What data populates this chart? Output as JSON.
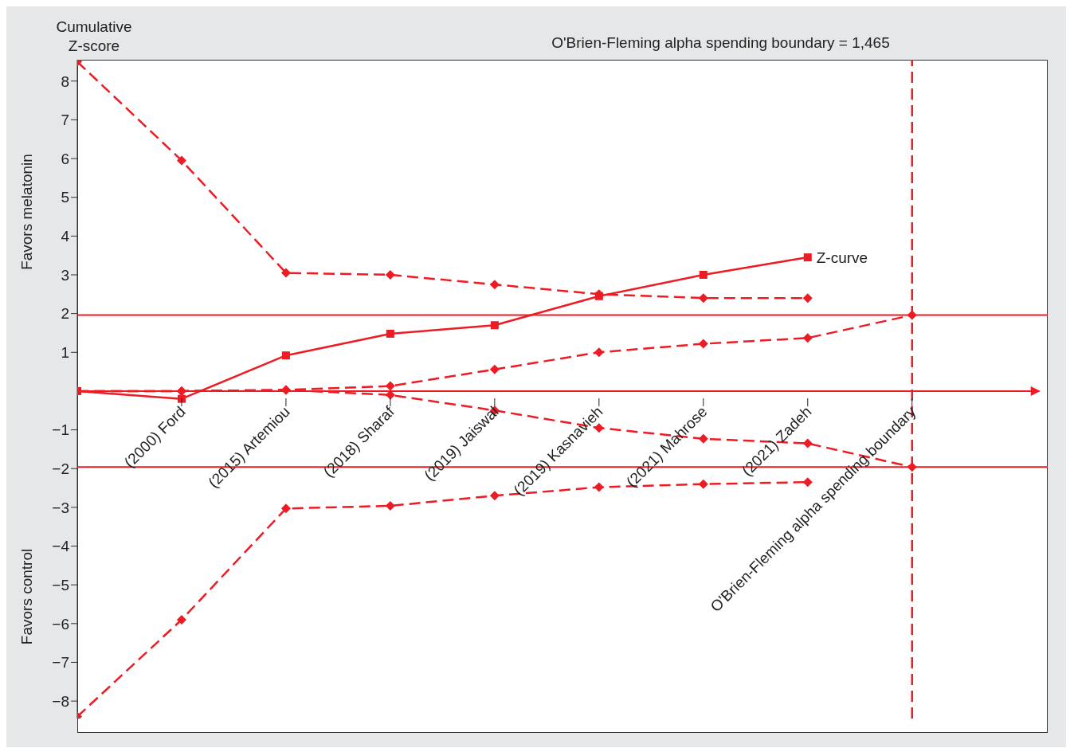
{
  "chart_data": {
    "type": "line",
    "ylabel": "Cumulative Z-score",
    "categories": [
      null,
      "(2000) Ford",
      "(2015) Artemiou",
      "(2018) Sharaf",
      "(2019) Jaiswal",
      "(2019) Kasnavieh",
      "(2021) Mahrose",
      "(2021) Zadeh",
      "O'Brien-Fleming alpha spending boundary"
    ],
    "series": [
      {
        "name": "Z-curve",
        "color": "#ed1c24",
        "marker": "square",
        "line_style": "solid",
        "values": [
          0,
          -0.2,
          0.92,
          1.48,
          1.7,
          2.45,
          3.0,
          3.45,
          null
        ]
      },
      {
        "color": "#ed1c24",
        "marker": "diamond",
        "line_style": "dashed",
        "values": [
          8.5,
          5.95,
          3.05,
          3.0,
          2.75,
          2.5,
          2.4,
          2.4,
          null
        ]
      },
      {
        "color": "#ed1c24",
        "marker": "diamond",
        "line_style": "dashed",
        "values": [
          -8.4,
          -5.9,
          -3.03,
          -2.96,
          -2.7,
          -2.48,
          -2.4,
          -2.35,
          null
        ]
      },
      {
        "color": "#ed1c24",
        "marker": "diamond",
        "line_style": "dashed",
        "values": [
          0,
          0,
          0.03,
          0.13,
          0.56,
          1.0,
          1.22,
          1.37,
          1.96
        ]
      },
      {
        "color": "#ed1c24",
        "marker": "diamond",
        "line_style": "dashed",
        "values": [
          0,
          0,
          0.03,
          -0.1,
          -0.5,
          -0.95,
          -1.23,
          -1.35,
          -1.96
        ]
      }
    ],
    "ylim": [
      -8.45,
      8.55
    ],
    "yticks": [
      -8,
      -7,
      -6,
      -5,
      -4,
      -3,
      -2,
      -1,
      1,
      2,
      3,
      4,
      5,
      6,
      7,
      8
    ],
    "ref_lines": [
      {
        "axis": "y",
        "value": 1.96,
        "color": "#ed1c24",
        "line_style": "solid"
      },
      {
        "axis": "y",
        "value": -1.96,
        "color": "#ed1c24",
        "line_style": "solid"
      },
      {
        "axis": "y",
        "value": 0,
        "color": "#ed1c24",
        "line_style": "solid"
      },
      {
        "axis": "x",
        "value": "O'Brien-Fleming alpha spending boundary",
        "label": "O'Brien-Fleming alpha spending boundary = 1,465",
        "color": "#ed1c24",
        "line_style": "dashed"
      }
    ],
    "annotations": [
      "Favors melatonin",
      "Favors control"
    ],
    "grid": false,
    "legend": false
  }
}
